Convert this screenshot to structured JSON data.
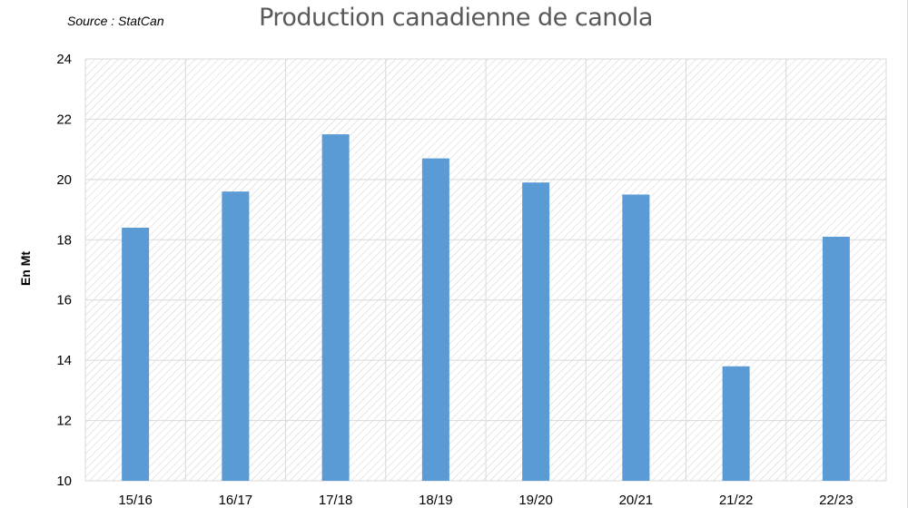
{
  "chart_data": {
    "type": "bar",
    "title": "Production canadienne de canola",
    "source": "Source : StatCan",
    "ylabel": "En Mt",
    "xlabel": "",
    "categories": [
      "15/16",
      "16/17",
      "17/18",
      "18/19",
      "19/20",
      "20/21",
      "21/22",
      "22/23"
    ],
    "values": [
      18.4,
      19.6,
      21.5,
      20.7,
      19.9,
      19.5,
      13.8,
      18.1
    ],
    "ylim": [
      10,
      24
    ],
    "yticks": [
      10,
      12,
      14,
      16,
      18,
      20,
      22,
      24
    ],
    "grid": true,
    "legend": "none",
    "colors": {
      "bar": "#5b9bd5",
      "grid": "#d9d9d9",
      "hatch": "#d6d6d6",
      "title": "#595959"
    }
  }
}
